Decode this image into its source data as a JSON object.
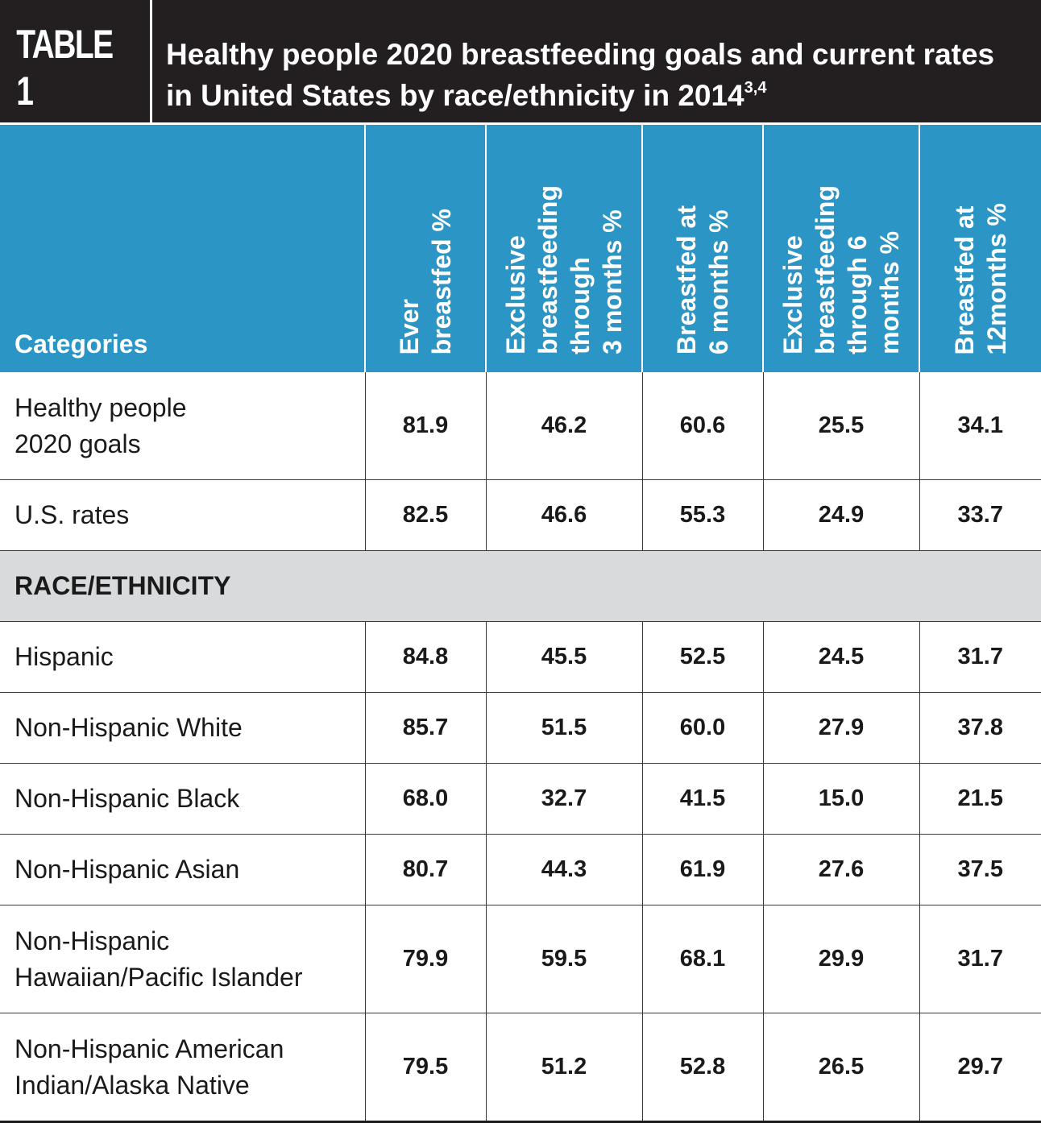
{
  "header": {
    "table_label": "TABLE 1",
    "title": "Healthy people 2020 breastfeeding goals and current rates in United States by race/ethnicity in 2014",
    "title_superscript": "3,4",
    "colors": {
      "title_bg": "#231f20",
      "header_bg": "#2b95c5",
      "section_bg": "#d9dadb"
    }
  },
  "table": {
    "columns": [
      "Categories",
      "Ever\nbreastfed %",
      "Exclusive\nbreastfeeding\nthrough\n3 months %",
      "Breastfed at\n6 months %",
      "Exclusive\nbreastfeeding\nthrough 6\nmonths %",
      "Breastfed at\n12months %"
    ],
    "rows": [
      {
        "label": "Healthy people\n2020 goals",
        "values": [
          "81.9",
          "46.2",
          "60.6",
          "25.5",
          "34.1"
        ]
      },
      {
        "label": "U.S. rates",
        "values": [
          "82.5",
          "46.6",
          "55.3",
          "24.9",
          "33.7"
        ]
      }
    ],
    "section_label": "RACE/ETHNICITY",
    "race_rows": [
      {
        "label": "Hispanic",
        "values": [
          "84.8",
          "45.5",
          "52.5",
          "24.5",
          "31.7"
        ]
      },
      {
        "label": "Non-Hispanic White",
        "values": [
          "85.7",
          "51.5",
          "60.0",
          "27.9",
          "37.8"
        ]
      },
      {
        "label": "Non-Hispanic Black",
        "values": [
          "68.0",
          "32.7",
          "41.5",
          "15.0",
          "21.5"
        ]
      },
      {
        "label": "Non-Hispanic Asian",
        "values": [
          "80.7",
          "44.3",
          "61.9",
          "27.6",
          "37.5"
        ]
      },
      {
        "label": "Non-Hispanic\nHawaiian/Pacific Islander",
        "values": [
          "79.9",
          "59.5",
          "68.1",
          "29.9",
          "31.7"
        ]
      },
      {
        "label": "Non-Hispanic American\nIndian/Alaska Native",
        "values": [
          "79.5",
          "51.2",
          "52.8",
          "26.5",
          "29.7"
        ]
      }
    ]
  }
}
